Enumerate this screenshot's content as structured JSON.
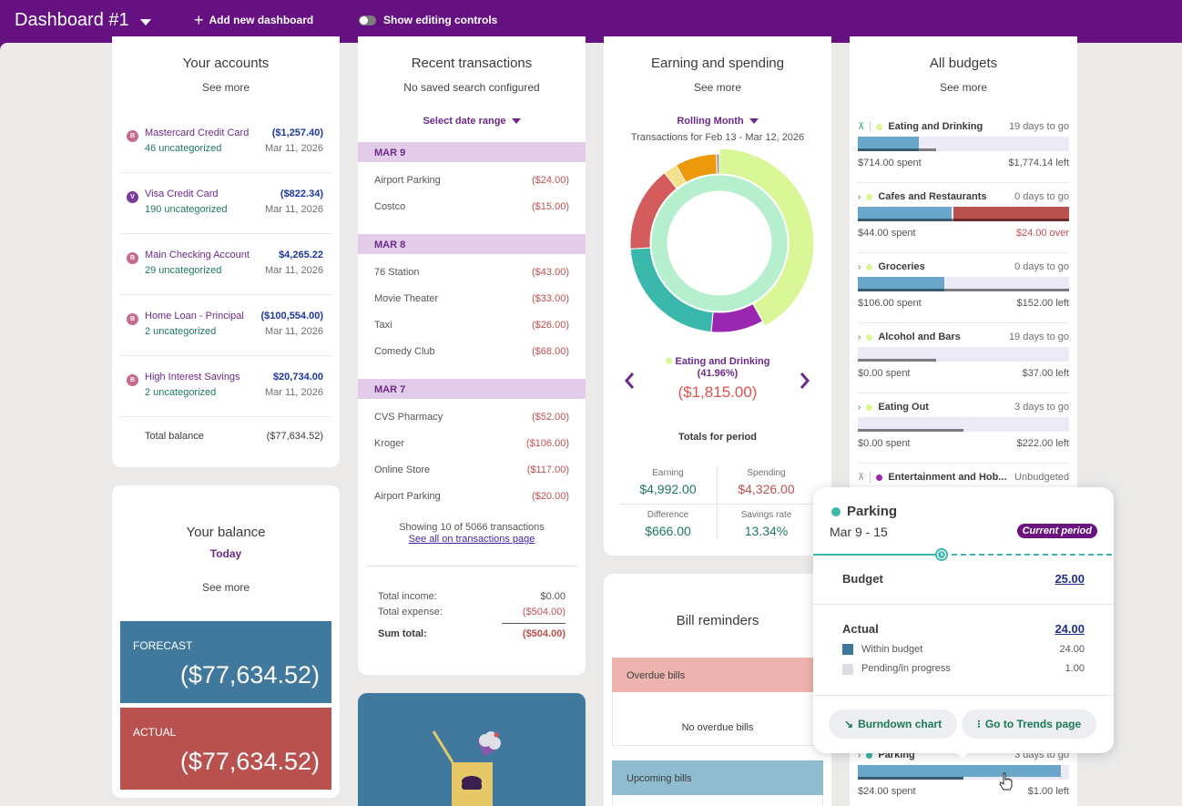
{
  "topbar": {
    "title": "Dashboard #1",
    "add_dashboard": "Add new dashboard",
    "editing_controls": "Show editing controls"
  },
  "accounts": {
    "title": "Your accounts",
    "see_more": "See more",
    "items": [
      {
        "badge": "B",
        "name": "Mastercard Credit Card",
        "balance": "($1,257.40)",
        "uncategorized": "46 uncategorized",
        "date": "Mar 11, 2026"
      },
      {
        "badge": "V",
        "name": "Visa Credit Card",
        "balance": "($822.34)",
        "uncategorized": "190 uncategorized",
        "date": "Mar 11, 2026"
      },
      {
        "badge": "B",
        "name": "Main Checking Account",
        "balance": "$4,265.22",
        "uncategorized": "29 uncategorized",
        "date": "Mar 11, 2026"
      },
      {
        "badge": "B",
        "name": "Home Loan - Principal",
        "balance": "($100,554.00)",
        "uncategorized": "2 uncategorized",
        "date": "Mar 11, 2026"
      },
      {
        "badge": "B",
        "name": "High Interest Savings",
        "balance": "$20,734.00",
        "uncategorized": "2 uncategorized",
        "date": "Mar 11, 2026"
      }
    ],
    "total_label": "Total balance",
    "total_value": "($77,634.52)"
  },
  "balance": {
    "title": "Your balance",
    "period": "Today",
    "see_more": "See more",
    "forecast_label": "FORECAST",
    "forecast_value": "($77,634.52)",
    "actual_label": "ACTUAL",
    "actual_value": "($77,634.52)"
  },
  "transactions": {
    "title": "Recent transactions",
    "subtitle": "No saved search configured",
    "date_range": "Select date range",
    "groups": [
      {
        "date": "MAR 9",
        "items": [
          {
            "name": "Airport Parking",
            "amount": "($24.00)"
          },
          {
            "name": "Costco",
            "amount": "($15.00)"
          }
        ]
      },
      {
        "date": "MAR 8",
        "items": [
          {
            "name": "76 Station",
            "amount": "($43.00)"
          },
          {
            "name": "Movie Theater",
            "amount": "($33.00)"
          },
          {
            "name": "Taxi",
            "amount": "($26.00)"
          },
          {
            "name": "Comedy Club",
            "amount": "($68.00)"
          }
        ]
      },
      {
        "date": "MAR 7",
        "items": [
          {
            "name": "CVS Pharmacy",
            "amount": "($52.00)"
          },
          {
            "name": "Kroger",
            "amount": "($106.00)"
          },
          {
            "name": "Online Store",
            "amount": "($117.00)"
          },
          {
            "name": "Airport Parking",
            "amount": "($20.00)"
          }
        ]
      }
    ],
    "showing": "Showing 10 of 5066 transactions",
    "see_all": "See all on transactions page",
    "total_income_label": "Total income:",
    "total_income": "$0.00",
    "total_expense_label": "Total expense:",
    "total_expense": "($504.00)",
    "sum_total_label": "Sum total:",
    "sum_total": "($504.00)"
  },
  "earning": {
    "title": "Earning and spending",
    "see_more": "See more",
    "period": "Rolling Month",
    "range": "Transactions for Feb 13 - Mar 12, 2026",
    "selected_label": "Eating and Drinking",
    "selected_pct": "(41.96%)",
    "selected_amount": "($1,815.00)",
    "totals_title": "Totals for period",
    "earning_label": "Earning",
    "earning_value": "$4,992.00",
    "spending_label": "Spending",
    "spending_value": "$4,326.00",
    "difference_label": "Difference",
    "difference_value": "$666.00",
    "savings_label": "Savings rate",
    "savings_value": "13.34%"
  },
  "chart_data": {
    "type": "pie",
    "title": "Earning and spending",
    "outer_ring": [
      {
        "label": "Eating and Drinking",
        "percent": 41.96,
        "color": "#d9f797"
      },
      {
        "label": "Purple category",
        "percent": 9.5,
        "color": "#9a27b0"
      },
      {
        "label": "Teal category",
        "percent": 22.5,
        "color": "#3bb8ac"
      },
      {
        "label": "Red category",
        "percent": 15.5,
        "color": "#d55c5c"
      },
      {
        "label": "Pale yellow category",
        "percent": 2.5,
        "color": "#f3e18e"
      },
      {
        "label": "Orange category",
        "percent": 7.5,
        "color": "#ec9a0c"
      },
      {
        "label": "Gray category",
        "percent": 0.54,
        "color": "#9a9a9a"
      }
    ],
    "inner_ring": [
      {
        "label": "Earning",
        "percent": 100,
        "color": "#b5efcd"
      }
    ]
  },
  "bills": {
    "title": "Bill reminders",
    "overdue_label": "Overdue bills",
    "overdue_empty": "No overdue bills",
    "upcoming_label": "Upcoming bills"
  },
  "budgets": {
    "title": "All budgets",
    "see_more": "See more",
    "items": [
      {
        "name": "Eating and Drinking",
        "days": "19 days to go",
        "spent": "$714.00 spent",
        "left": "$1,774.14 left",
        "fill": 0.29,
        "over": 0,
        "time": 0.37,
        "dot": "#d9f797",
        "icon": "collapse"
      },
      {
        "name": "Cafes and Restaurants",
        "days": "0 days to go",
        "spent": "$44.00 spent",
        "left": "$24.00 over",
        "fill": 0.445,
        "over": 0.555,
        "time": 1.0,
        "dot": "#d9f797",
        "icon": "expand",
        "left_over": true
      },
      {
        "name": "Groceries",
        "days": "0 days to go",
        "spent": "$106.00 spent",
        "left": "$152.00 left",
        "fill": 0.41,
        "over": 0,
        "time": 1.0,
        "dot": "#d9f797",
        "icon": "expand"
      },
      {
        "name": "Alcohol and Bars",
        "days": "19 days to go",
        "spent": "$0.00 spent",
        "left": "$37.00 left",
        "fill": 0,
        "over": 0,
        "time": 0.37,
        "dot": "#d9f797",
        "icon": "expand"
      },
      {
        "name": "Eating Out",
        "days": "3 days to go",
        "spent": "$0.00 spent",
        "left": "$222.00 left",
        "fill": 0,
        "over": 0,
        "time": 0.5,
        "dot": "#d9f797",
        "icon": "expand"
      }
    ],
    "unbudgeted_name": "Entertainment and Hob...",
    "unbudgeted_label": "Unbudgeted",
    "parking": {
      "name": "Parking",
      "days": "3 days to go",
      "spent": "$24.00 spent",
      "left": "$1.00 left",
      "fill": 0.96,
      "time": 0.5
    }
  },
  "popover": {
    "category": "Parking",
    "range": "Mar 9 - 15",
    "badge": "Current period",
    "budget_label": "Budget",
    "budget_value": "25.00",
    "actual_label": "Actual",
    "actual_value": "24.00",
    "within_label": "Within budget",
    "within_value": "24.00",
    "pending_label": "Pending/in progress",
    "pending_value": "1.00",
    "burndown_button": "Burndown chart",
    "trends_button": "Go to Trends page"
  }
}
